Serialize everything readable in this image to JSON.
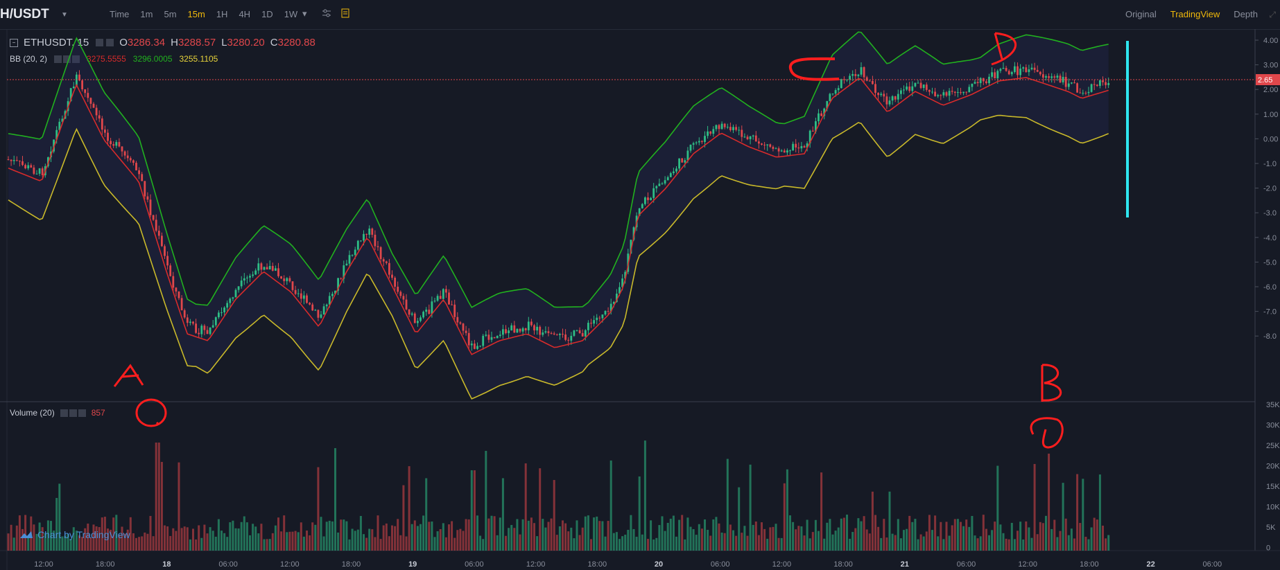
{
  "header": {
    "symbol": "H/USDT",
    "intervals": [
      "Time",
      "1m",
      "5m",
      "15m",
      "1H",
      "4H",
      "1D",
      "1W"
    ],
    "active_interval": "15m",
    "views": [
      "Original",
      "TradingView",
      "Depth"
    ],
    "active_view": "TradingView"
  },
  "legend": {
    "ticker": "ETHUSDT, 15",
    "o_label": "O",
    "o_value": "3286.34",
    "h_label": "H",
    "h_value": "3288.57",
    "l_label": "L",
    "l_value": "3280.20",
    "c_label": "C",
    "c_value": "3280.88",
    "bb_name": "BB (20, 2)",
    "bb_basis": "3275.5555",
    "bb_upper": "3296.0005",
    "bb_lower": "3255.1105",
    "vol_name": "Volume (20)",
    "vol_value": "857"
  },
  "price_axis": {
    "ticks": [
      "4.00",
      "3.00",
      "2.00",
      "1.00",
      "0.00",
      "-1.0",
      "-2.0",
      "-3.0",
      "-4.0",
      "-5.0",
      "-6.0",
      "-7.0",
      "-8.0"
    ],
    "current_label": "2.65"
  },
  "volume_axis": {
    "ticks": [
      "35K",
      "30K",
      "25K",
      "20K",
      "15K",
      "10K",
      "5K",
      "0"
    ]
  },
  "time_axis": {
    "ticks": [
      "12:00",
      "18:00",
      "18",
      "06:00",
      "12:00",
      "18:00",
      "19",
      "06:00",
      "12:00",
      "18:00",
      "20",
      "06:00",
      "12:00",
      "18:00",
      "21",
      "06:00",
      "12:00",
      "18:00",
      "22",
      "06:00"
    ]
  },
  "annotations": {
    "a": "A",
    "b": "B",
    "c": "C",
    "d": "D"
  },
  "watermark": "Chart by TradingView",
  "colors": {
    "background": "#161a25",
    "up": "#2ebd85",
    "down": "#e0474b",
    "bb_upper": "#21b11f",
    "bb_basis": "#d82b2b",
    "bb_lower": "#c9b92a",
    "annotation": "#ff1e1e",
    "marker_line": "#2ee6f0",
    "accent": "#f0b90b"
  }
}
